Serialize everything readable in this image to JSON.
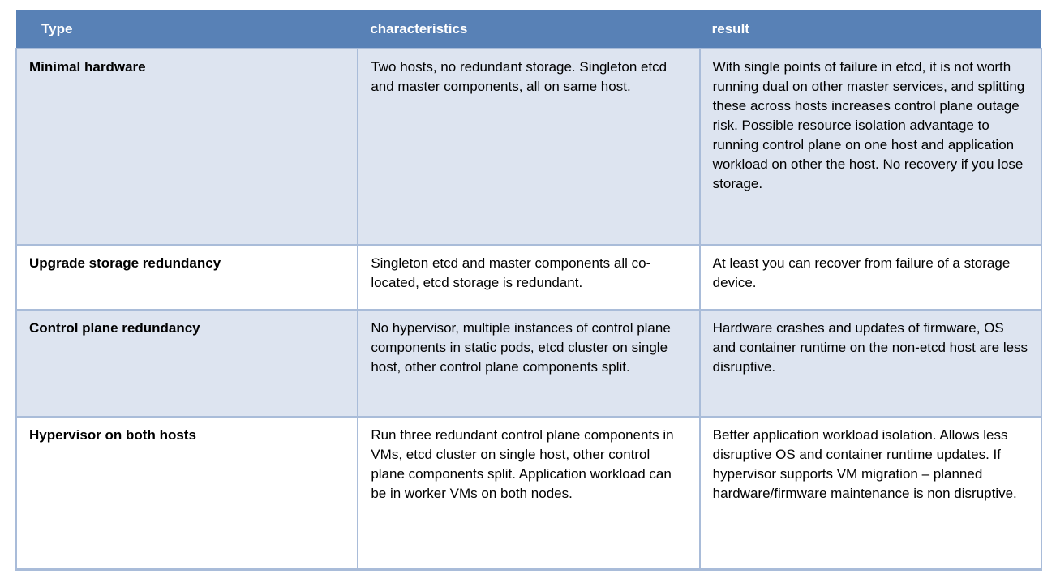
{
  "table": {
    "columns": [
      {
        "key": "type",
        "label": "Type"
      },
      {
        "key": "characteristics",
        "label": "characteristics"
      },
      {
        "key": "result",
        "label": "result"
      }
    ],
    "rows": [
      {
        "type": "Minimal hardware",
        "characteristics": "Two hosts, no redundant storage. Singleton etcd and master components, all on same host.",
        "result": "With single points of failure in etcd, it is not worth running dual on other master services, and splitting these across hosts increases control plane outage risk. Possible resource isolation advantage to running control plane on one host and application workload on other the host. No recovery if you lose storage."
      },
      {
        "type": "Upgrade storage redundancy",
        "characteristics": "Singleton etcd and master components all co-located, etcd storage is redundant.",
        "result": "At least you can recover from failure of a storage device."
      },
      {
        "type": "Control plane redundancy",
        "characteristics": "No hypervisor, multiple instances of control plane components in static pods, etcd cluster on single host, other control plane components split.",
        "result": "Hardware crashes and updates of firmware, OS and container runtime on the non-etcd host are less disruptive."
      },
      {
        "type": "Hypervisor on both hosts",
        "characteristics": "Run three redundant control plane components in VMs, etcd cluster on single host, other control plane components split. Application workload can be in worker VMs on both nodes.",
        "result": "Better application workload isolation. Allows less disruptive OS and container runtime updates. If hypervisor supports VM migration – planned hardware/firmware maintenance is non disruptive."
      }
    ]
  },
  "colors": {
    "header_bg": "#5881b6",
    "header_text": "#ffffff",
    "row_alt_bg": "#dde4f0",
    "row_bg": "#ffffff",
    "border": "#a9bcd9",
    "body_text": "#000000"
  }
}
